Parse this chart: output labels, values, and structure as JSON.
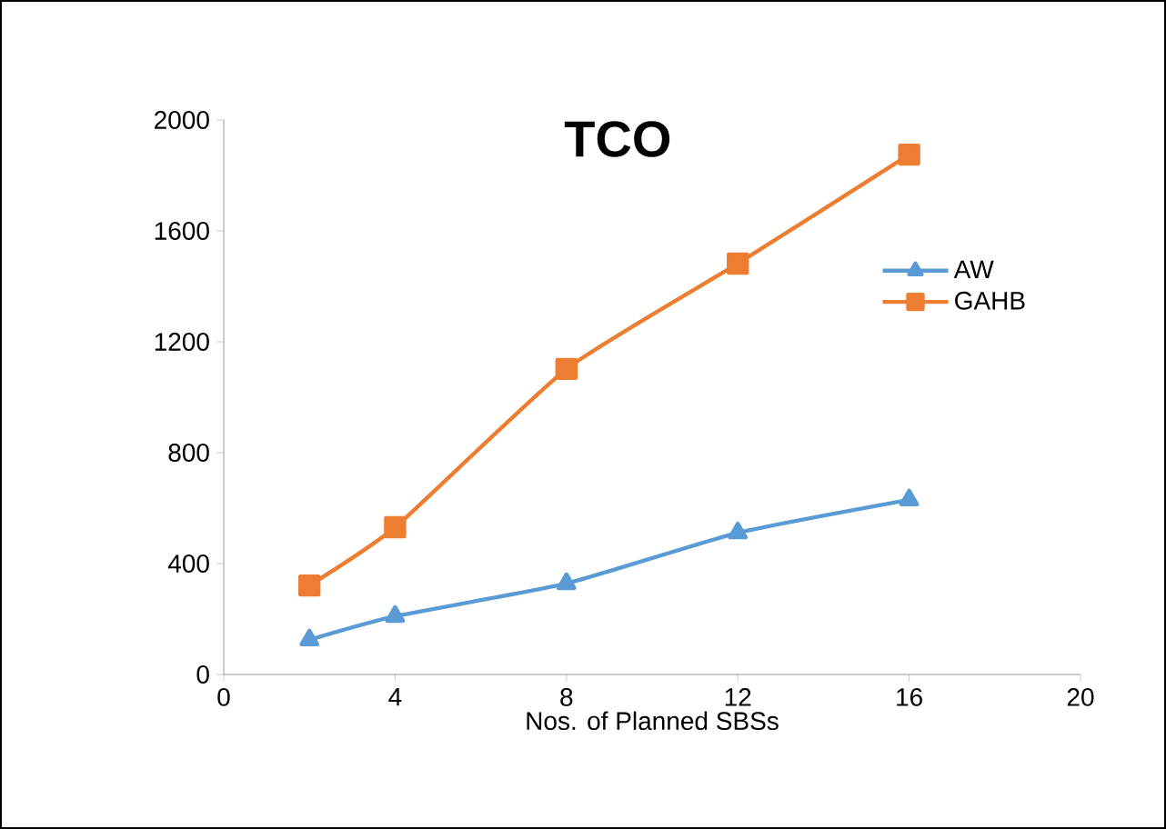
{
  "chart_data": {
    "type": "line",
    "title": "TCO",
    "xlabel": "Nos. of Planned SBSs",
    "x": [
      2,
      4,
      8,
      12,
      16
    ],
    "series": [
      {
        "name": "AW",
        "color": "#5b9bd5",
        "marker": "triangle",
        "values": [
          125,
          210,
          328,
          511,
          630
        ]
      },
      {
        "name": "GAHB",
        "color": "#ed7d31",
        "marker": "square",
        "values": [
          321,
          531,
          1102,
          1482,
          1875
        ]
      }
    ],
    "xlim": [
      0,
      20
    ],
    "xticks": [
      0,
      4,
      8,
      12,
      16,
      20
    ],
    "ylim": [
      0,
      2000
    ],
    "yticks": [
      0,
      400,
      800,
      1200,
      1600,
      2000
    ],
    "grid": false,
    "legend": "right",
    "line_style": "solid"
  }
}
